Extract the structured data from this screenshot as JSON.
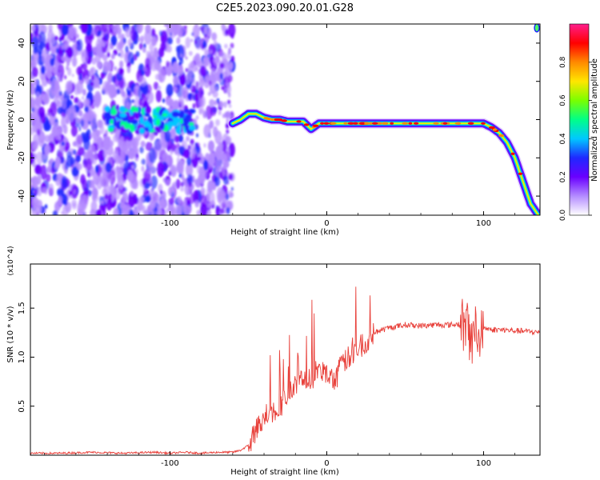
{
  "figure": {
    "title": "C2E5.2023.090.20.01.G28"
  },
  "chart_data": [
    {
      "type": "heatmap",
      "title": "C2E5.2023.090.20.01.G28",
      "xlabel": "Height of straight line (km)",
      "ylabel": "Frequency (Hz)",
      "xlim": [
        -189,
        136
      ],
      "ylim": [
        -50,
        50
      ],
      "xticks": [
        -100,
        0,
        100
      ],
      "yticks": [
        -40,
        -20,
        0,
        20,
        40
      ],
      "colorbar": {
        "label": "Normalized spectral amplitude",
        "range": [
          0,
          1
        ],
        "ticks": [
          "0.0",
          "0.2",
          "0.4",
          "0.6",
          "0.8"
        ],
        "colors": [
          "#ffffff",
          "#b48cff",
          "#6a00ff",
          "#1f28ff",
          "#00c8ff",
          "#00ff88",
          "#7aff00",
          "#ffe600",
          "#ff8a00",
          "#ff0000",
          "#ff1e8c"
        ]
      },
      "noise_region_x": [
        -189,
        -60
      ],
      "signal_ridge": {
        "x": [
          -60,
          -55,
          -50,
          -45,
          -40,
          -35,
          -30,
          -25,
          -20,
          -15,
          -10,
          -5,
          0,
          10,
          20,
          30,
          40,
          50,
          60,
          70,
          80,
          90,
          100,
          105,
          110,
          115,
          120,
          125,
          130,
          135
        ],
        "freq": [
          -2,
          0,
          3,
          3,
          1,
          0,
          0,
          -1,
          -1,
          -1,
          -5,
          -2,
          -2,
          -2,
          -2,
          -2,
          -2,
          -2,
          -2,
          -2,
          -2,
          -2,
          -2,
          -4,
          -7,
          -12,
          -20,
          -32,
          -44,
          -50
        ]
      }
    },
    {
      "type": "line",
      "xlabel": "Height of straight line (km)",
      "ylabel": "SNR (10 * v/v)",
      "scale_label": "(x10^4)",
      "xlim": [
        -189,
        136
      ],
      "ylim": [
        0,
        1.95
      ],
      "xticks": [
        -100,
        0,
        100
      ],
      "yticks": [
        0.5,
        1.0,
        1.5
      ],
      "ytick_labels": [
        "0.5",
        "1.0",
        "1.5"
      ],
      "color": "#e8403a",
      "series": [
        {
          "values_x": [
            -189,
            -170,
            -150,
            -130,
            -110,
            -100,
            -90,
            -80,
            -70,
            -60,
            -55,
            -50,
            -45,
            -40,
            -35,
            -30,
            -25,
            -20,
            -15,
            -10,
            -5,
            0,
            5,
            10,
            15,
            20,
            25,
            30,
            40,
            50,
            60,
            70,
            80,
            85,
            90,
            92,
            95,
            97,
            100,
            105,
            110,
            120,
            130,
            136
          ],
          "values_y": [
            0.02,
            0.02,
            0.03,
            0.02,
            0.03,
            0.02,
            0.03,
            0.02,
            0.03,
            0.03,
            0.05,
            0.1,
            0.25,
            0.4,
            0.45,
            0.5,
            0.6,
            0.7,
            0.8,
            0.75,
            0.9,
            0.8,
            0.75,
            0.95,
            1.0,
            1.1,
            1.15,
            1.25,
            1.3,
            1.33,
            1.32,
            1.33,
            1.33,
            1.34,
            1.3,
            1.1,
            1.4,
            1.2,
            1.3,
            1.28,
            1.28,
            1.27,
            1.26,
            1.25
          ]
        }
      ]
    }
  ]
}
